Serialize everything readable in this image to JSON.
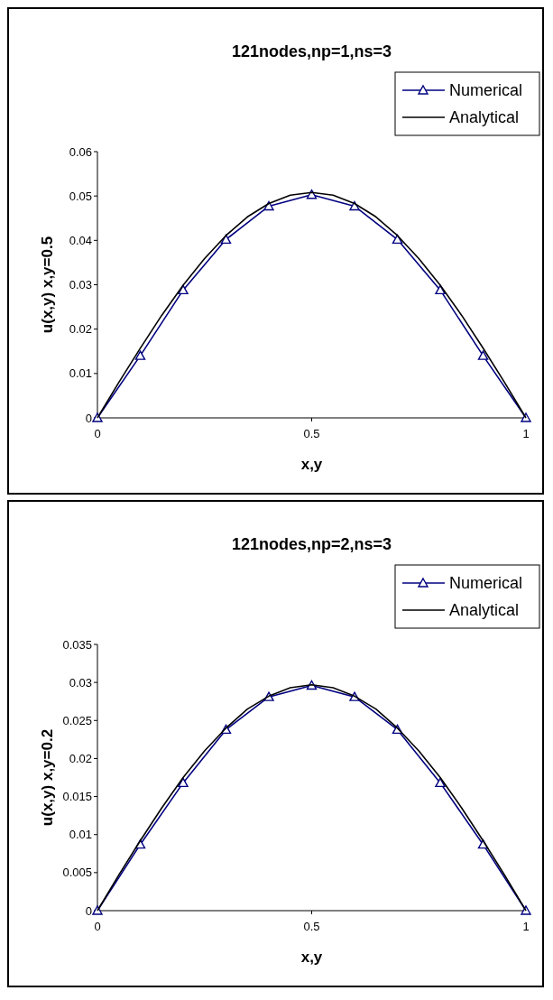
{
  "chart_data": [
    {
      "type": "line",
      "title": "121nodes,np=1,ns=3",
      "xlabel": "x,y",
      "ylabel": "u(x,y) x,y=0.5",
      "xlim": [
        0,
        1
      ],
      "xticks": [
        0,
        0.5,
        1
      ],
      "ylim": [
        0,
        0.06
      ],
      "yticks": [
        0,
        0.01,
        0.02,
        0.03,
        0.04,
        0.05,
        0.06
      ],
      "grid": false,
      "legend": "top right",
      "series": [
        {
          "name": "Numerical",
          "color": "#000080",
          "marker": "triangle",
          "x": [
            0,
            0.1,
            0.2,
            0.3,
            0.4,
            0.5,
            0.6,
            0.7,
            0.8,
            0.9,
            1
          ],
          "values": [
            0,
            0.014,
            0.0288,
            0.0402,
            0.0477,
            0.0503,
            0.0477,
            0.0402,
            0.0288,
            0.014,
            0
          ]
        },
        {
          "name": "Analytical",
          "color": "#000000",
          "marker": "none",
          "x": [
            0,
            0.05,
            0.1,
            0.15,
            0.2,
            0.25,
            0.3,
            0.35,
            0.4,
            0.45,
            0.5,
            0.55,
            0.6,
            0.65,
            0.7,
            0.75,
            0.8,
            0.85,
            0.9,
            0.95,
            1
          ],
          "values": [
            0,
            0.008,
            0.0157,
            0.0231,
            0.0299,
            0.0359,
            0.0411,
            0.0453,
            0.0483,
            0.0502,
            0.0508,
            0.0502,
            0.0483,
            0.0453,
            0.0411,
            0.0359,
            0.0299,
            0.0231,
            0.0157,
            0.008,
            0
          ]
        }
      ]
    },
    {
      "type": "line",
      "title": "121nodes,np=2,ns=3",
      "xlabel": "x,y",
      "ylabel": "u(x,y) x,y=0.2",
      "xlim": [
        0,
        1
      ],
      "xticks": [
        0,
        0.5,
        1
      ],
      "ylim": [
        0,
        0.035
      ],
      "yticks": [
        0,
        0.005,
        0.01,
        0.015,
        0.02,
        0.025,
        0.03,
        0.035
      ],
      "grid": false,
      "legend": "top right",
      "series": [
        {
          "name": "Numerical",
          "color": "#000080",
          "marker": "triangle",
          "x": [
            0,
            0.1,
            0.2,
            0.3,
            0.4,
            0.5,
            0.6,
            0.7,
            0.8,
            0.9,
            1
          ],
          "values": [
            0,
            0.0087,
            0.0168,
            0.0238,
            0.0281,
            0.0296,
            0.0281,
            0.0238,
            0.0168,
            0.0087,
            0
          ]
        },
        {
          "name": "Analytical",
          "color": "#000000",
          "marker": "none",
          "x": [
            0,
            0.05,
            0.1,
            0.15,
            0.2,
            0.25,
            0.3,
            0.35,
            0.4,
            0.45,
            0.5,
            0.55,
            0.6,
            0.65,
            0.7,
            0.75,
            0.8,
            0.85,
            0.9,
            0.95,
            1
          ],
          "values": [
            0,
            0.0047,
            0.0092,
            0.0135,
            0.0175,
            0.021,
            0.024,
            0.0265,
            0.0282,
            0.0293,
            0.0297,
            0.0293,
            0.0282,
            0.0265,
            0.024,
            0.021,
            0.0175,
            0.0135,
            0.0092,
            0.0047,
            0
          ]
        }
      ]
    }
  ]
}
